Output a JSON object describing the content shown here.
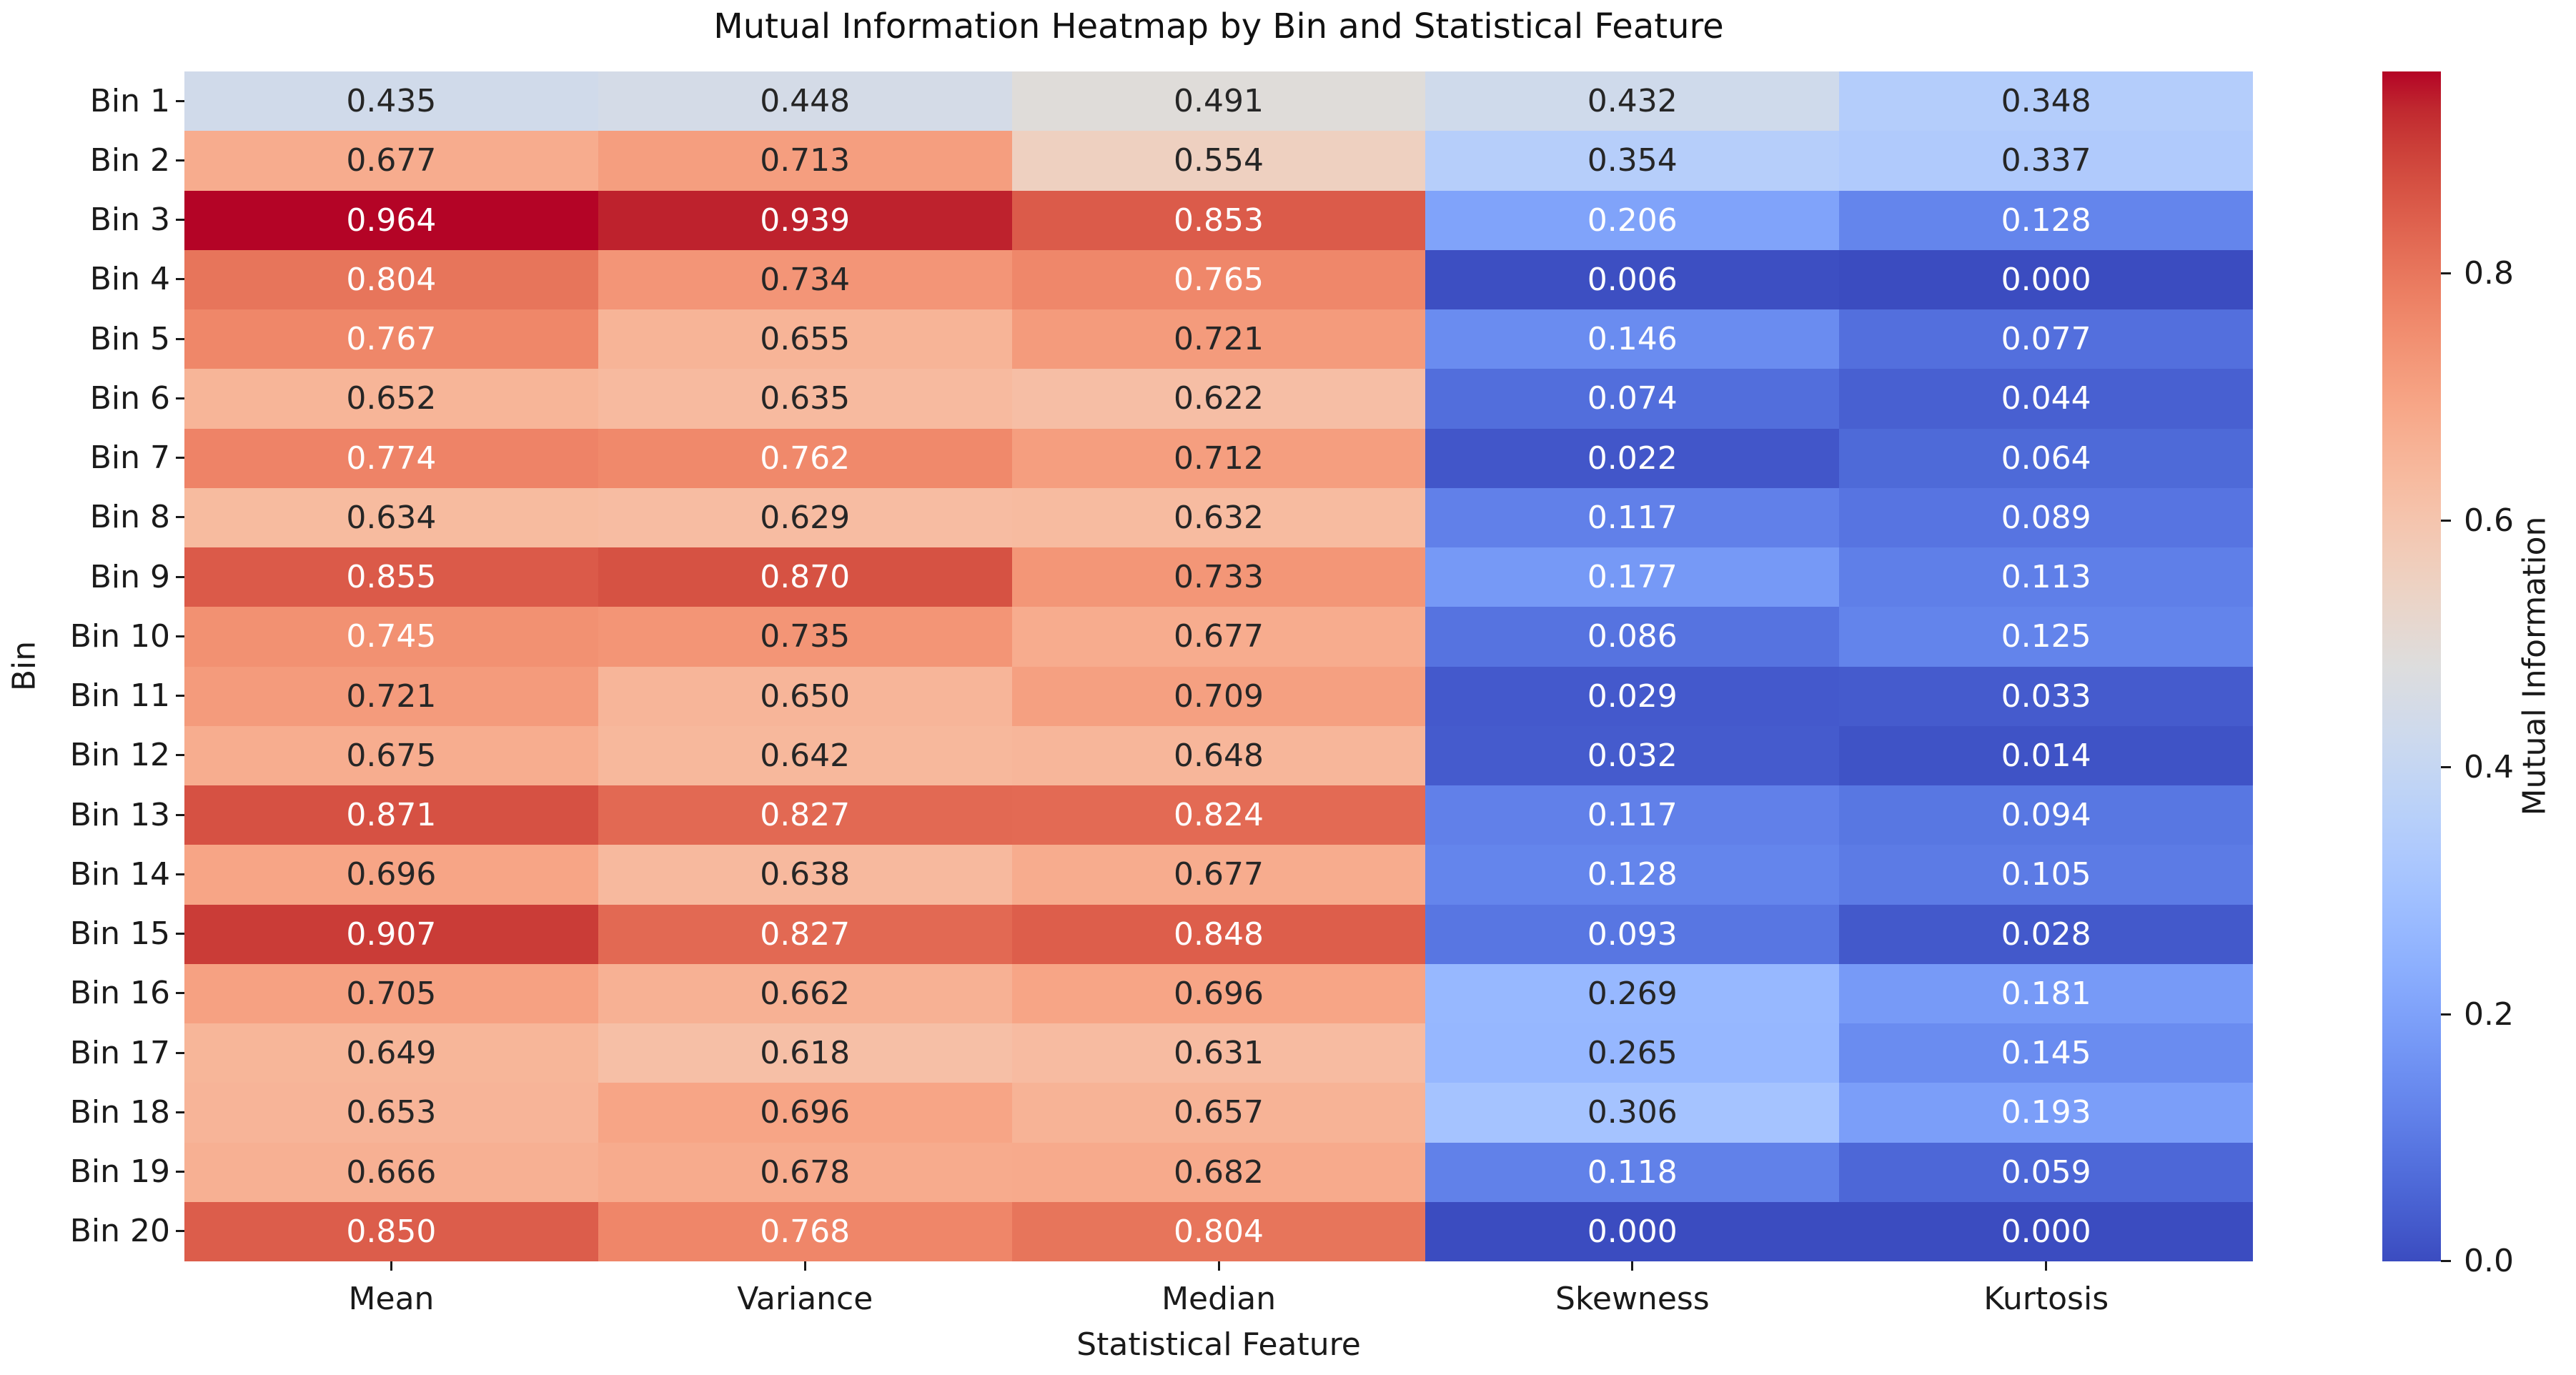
{
  "chart_data": {
    "type": "heatmap",
    "title": "Mutual Information Heatmap by Bin and Statistical Feature",
    "xlabel": "Statistical Feature",
    "ylabel": "Bin",
    "x_categories": [
      "Mean",
      "Variance",
      "Median",
      "Skewness",
      "Kurtosis"
    ],
    "y_categories": [
      "Bin 1",
      "Bin 2",
      "Bin 3",
      "Bin 4",
      "Bin 5",
      "Bin 6",
      "Bin 7",
      "Bin 8",
      "Bin 9",
      "Bin 10",
      "Bin 11",
      "Bin 12",
      "Bin 13",
      "Bin 14",
      "Bin 15",
      "Bin 16",
      "Bin 17",
      "Bin 18",
      "Bin 19",
      "Bin 20"
    ],
    "values": [
      [
        0.435,
        0.448,
        0.491,
        0.432,
        0.348
      ],
      [
        0.677,
        0.713,
        0.554,
        0.354,
        0.337
      ],
      [
        0.964,
        0.939,
        0.853,
        0.206,
        0.128
      ],
      [
        0.804,
        0.734,
        0.765,
        0.006,
        0.0
      ],
      [
        0.767,
        0.655,
        0.721,
        0.146,
        0.077
      ],
      [
        0.652,
        0.635,
        0.622,
        0.074,
        0.044
      ],
      [
        0.774,
        0.762,
        0.712,
        0.022,
        0.064
      ],
      [
        0.634,
        0.629,
        0.632,
        0.117,
        0.089
      ],
      [
        0.855,
        0.87,
        0.733,
        0.177,
        0.113
      ],
      [
        0.745,
        0.735,
        0.677,
        0.086,
        0.125
      ],
      [
        0.721,
        0.65,
        0.709,
        0.029,
        0.033
      ],
      [
        0.675,
        0.642,
        0.648,
        0.032,
        0.014
      ],
      [
        0.871,
        0.827,
        0.824,
        0.117,
        0.094
      ],
      [
        0.696,
        0.638,
        0.677,
        0.128,
        0.105
      ],
      [
        0.907,
        0.827,
        0.848,
        0.093,
        0.028
      ],
      [
        0.705,
        0.662,
        0.696,
        0.269,
        0.181
      ],
      [
        0.649,
        0.618,
        0.631,
        0.265,
        0.145
      ],
      [
        0.653,
        0.696,
        0.657,
        0.306,
        0.193
      ],
      [
        0.666,
        0.678,
        0.682,
        0.118,
        0.059
      ],
      [
        0.85,
        0.768,
        0.804,
        0.0,
        0.0
      ]
    ],
    "annotation_decimals": 3,
    "vmin": 0.0,
    "vmax": 0.964,
    "colormap": "coolwarm",
    "grid": false,
    "legend_position": "right-colorbar",
    "colorbar_label": "Mutual Information",
    "colorbar_ticks": [
      0.0,
      0.2,
      0.4,
      0.6,
      0.8
    ]
  },
  "colors": {
    "background": "#ffffff",
    "axis_text": "#1a1a1a",
    "annotation_dark": "#262626",
    "annotation_light": "#ffffff",
    "coolwarm_lut": [
      "#3B4CC0",
      "#445ACC",
      "#4D68D7",
      "#5775E1",
      "#6282EA",
      "#6C8EF1",
      "#779AF7",
      "#82A5FB",
      "#8DB0FE",
      "#98B9FF",
      "#A3C2FF",
      "#AEC9FD",
      "#B8D0F9",
      "#C2D5F4",
      "#CCD9EE",
      "#D5DBE6",
      "#DDDDDD",
      "#E5D8D1",
      "#ECD3C5",
      "#F1CCB9",
      "#F5C4AD",
      "#F7BBA0",
      "#F7B194",
      "#F7A687",
      "#F49A7B",
      "#F18D6F",
      "#EC7F63",
      "#E57058",
      "#DE604D",
      "#D55042",
      "#CB3E38",
      "#C0282F",
      "#B40426"
    ]
  }
}
